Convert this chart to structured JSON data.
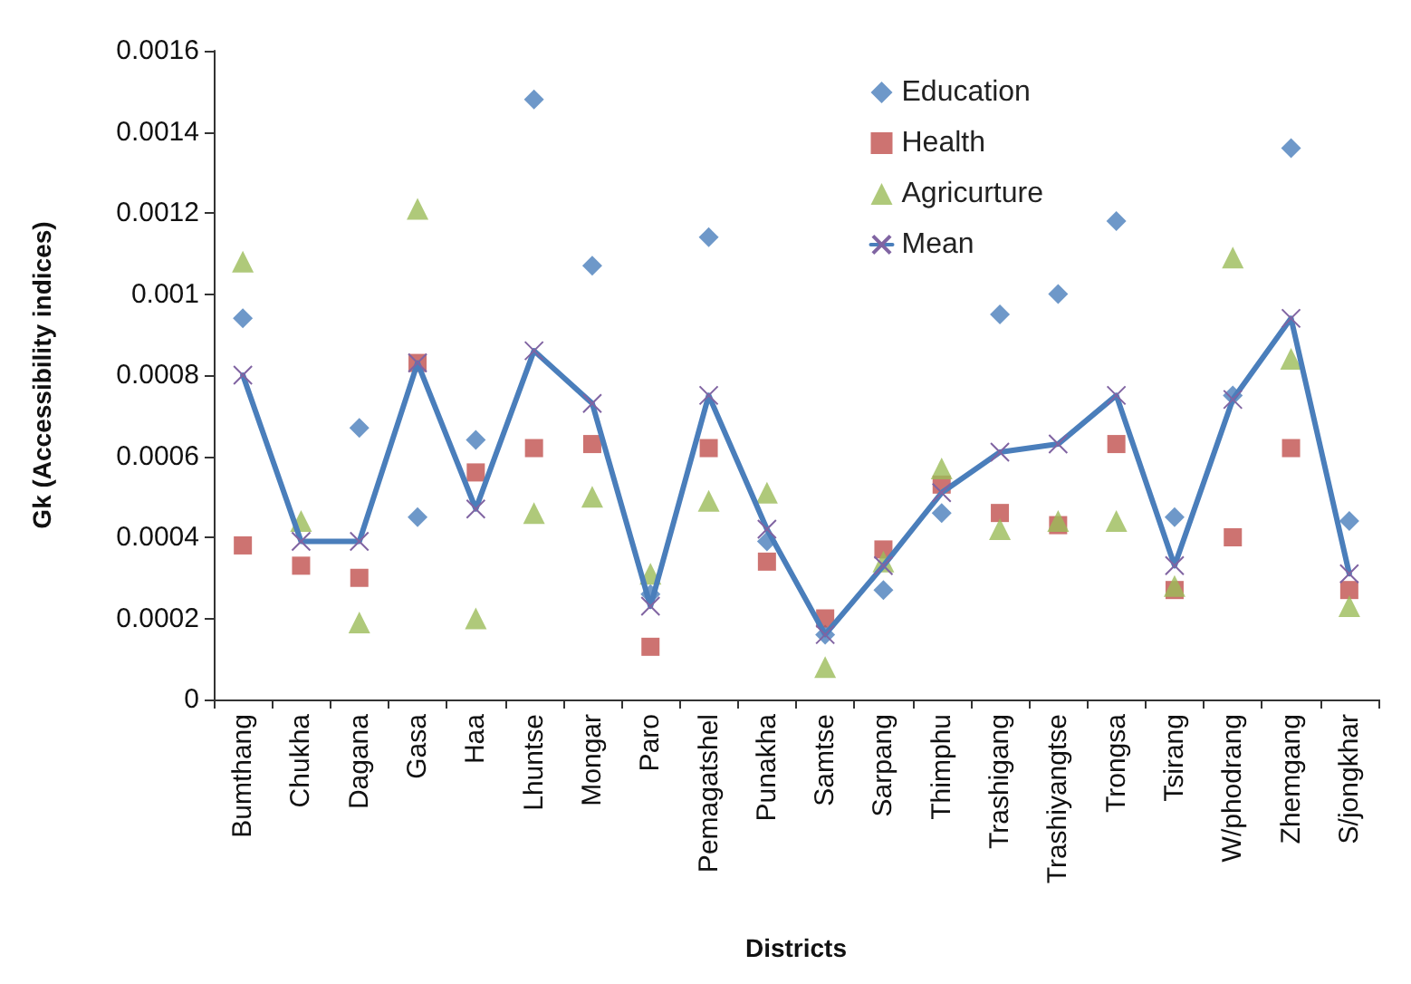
{
  "chart_data": {
    "type": "scatter",
    "xlabel": "Districts",
    "ylabel": "Gk (Accessibility indices)",
    "categories": [
      "Bumthang",
      "Chukha",
      "Dagana",
      "Gasa",
      "Haa",
      "Lhuntse",
      "Mongar",
      "Paro",
      "Pemagatshel",
      "Punakha",
      "Samtse",
      "Sarpang",
      "Thimphu",
      "Trashigang",
      "Trashiyangtse",
      "Trongsa",
      "Tsirang",
      "W/phodrang",
      "Zhemgang",
      "S/jongkhar"
    ],
    "series": [
      {
        "name": "Education",
        "color": "#4a7ebb",
        "marker": "diamond",
        "values": [
          0.00094,
          null,
          0.00067,
          0.00045,
          0.00064,
          0.00148,
          0.00107,
          0.00026,
          0.00114,
          0.00039,
          0.00016,
          0.00027,
          0.00046,
          0.00095,
          0.001,
          0.00118,
          0.00045,
          0.00075,
          0.00136,
          0.00044
        ]
      },
      {
        "name": "Health",
        "color": "#c0504d",
        "marker": "square",
        "values": [
          0.00038,
          0.00033,
          0.0003,
          0.00083,
          0.00056,
          0.00062,
          0.00063,
          0.00013,
          0.00062,
          0.00034,
          0.0002,
          0.00037,
          0.00053,
          0.00046,
          0.00043,
          0.00063,
          0.00027,
          0.0004,
          0.00062,
          0.00027
        ]
      },
      {
        "name": "Agricurture",
        "color": "#9bbb59",
        "marker": "triangle",
        "values": [
          0.00108,
          0.00044,
          0.00019,
          0.00121,
          0.0002,
          0.00046,
          0.0005,
          0.00031,
          0.00049,
          0.00051,
          8e-05,
          0.00034,
          0.00057,
          0.00042,
          0.00044,
          0.00044,
          0.00028,
          0.00109,
          0.00084,
          0.00023
        ]
      },
      {
        "name": "Mean",
        "type": "line",
        "color": "#4a7ebb",
        "marker": "cross",
        "line_style": "solid",
        "values": [
          0.0008,
          0.00039,
          0.00039,
          0.00083,
          0.00047,
          0.00086,
          0.00073,
          0.00023,
          0.00075,
          0.00042,
          0.00016,
          0.00033,
          0.00051,
          0.00061,
          0.00063,
          0.00075,
          0.00033,
          0.00074,
          0.00094,
          0.00031
        ]
      }
    ],
    "ylim": [
      0,
      0.0016
    ],
    "yticks": [
      0,
      0.0002,
      0.0004,
      0.0006,
      0.0008,
      0.001,
      0.0012,
      0.0014,
      0.0016
    ],
    "grid": false,
    "legend": "top right"
  }
}
